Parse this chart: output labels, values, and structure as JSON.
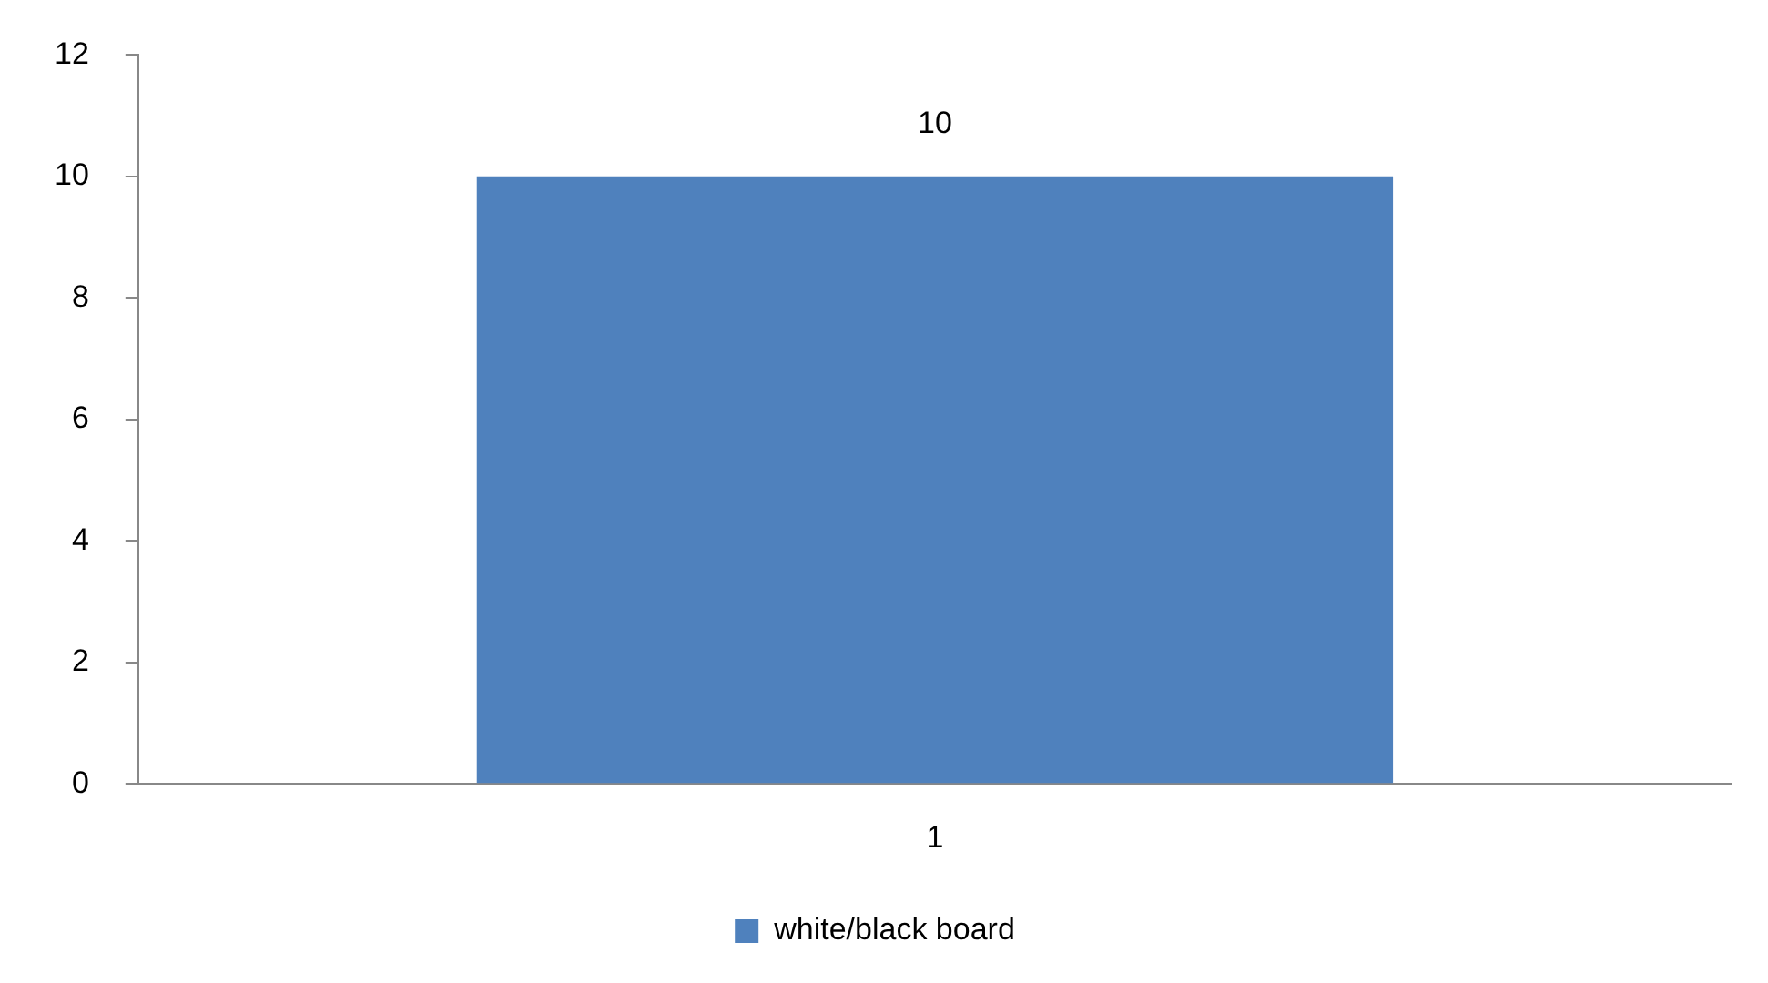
{
  "chart_data": {
    "type": "bar",
    "categories": [
      "1"
    ],
    "series": [
      {
        "name": "white/black board",
        "color": "#4f81bd",
        "values": [
          10
        ]
      }
    ],
    "ylim": [
      0,
      12
    ],
    "yticks": [
      0,
      2,
      4,
      6,
      8,
      10,
      12
    ],
    "grid": false,
    "legend": "bottom",
    "data_labels": true
  }
}
